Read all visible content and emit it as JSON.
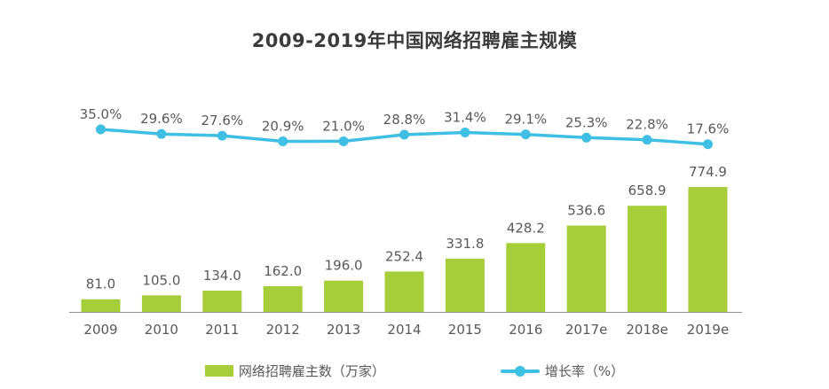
{
  "title": "2009-2019年中国网络招聘雇主规模",
  "colors": {
    "bar": "#a5ce39",
    "line": "#3fbfe3",
    "title_text": "#3b3b3b",
    "label_text": "#595959",
    "axis_line": "#909090"
  },
  "legend": {
    "bar_label": "网络招聘雇主数（万家）",
    "line_label": "增长率（%）"
  },
  "chart_data": {
    "type": "bar",
    "subtype": "bar-line-combo",
    "title": "2009-2019年中国网络招聘雇主规模",
    "categories": [
      "2009",
      "2010",
      "2011",
      "2012",
      "2013",
      "2014",
      "2015",
      "2016",
      "2017e",
      "2018e",
      "2019e"
    ],
    "series": [
      {
        "name": "网络招聘雇主数（万家）",
        "type": "bar",
        "color": "#a5ce39",
        "values": [
          81.0,
          105.0,
          134.0,
          162.0,
          196.0,
          252.4,
          331.8,
          428.2,
          536.6,
          658.9,
          774.9
        ]
      },
      {
        "name": "增长率（%）",
        "type": "line",
        "color": "#3fbfe3",
        "values": [
          35.0,
          29.6,
          27.6,
          20.9,
          21.0,
          28.8,
          31.4,
          29.1,
          25.3,
          22.8,
          17.6
        ]
      }
    ],
    "xlabel": "",
    "ylabel": "",
    "value_labels_shown": true,
    "grid": false,
    "legend_position": "bottom"
  }
}
